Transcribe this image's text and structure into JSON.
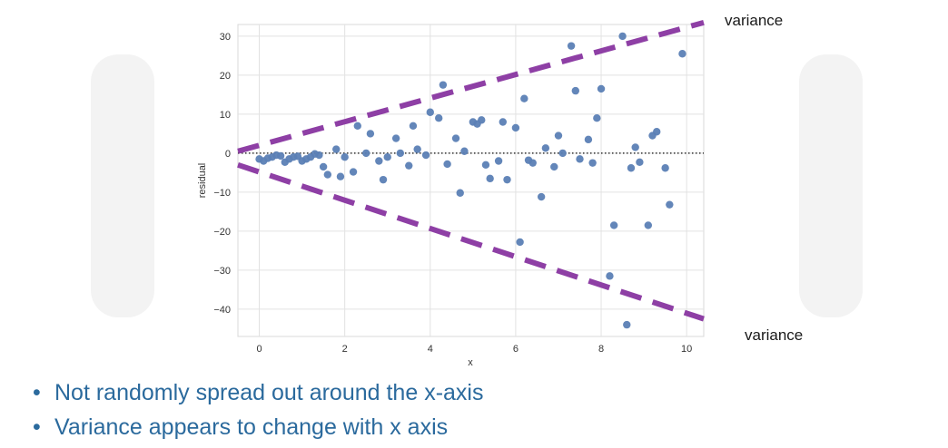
{
  "chart_data": {
    "type": "scatter",
    "xlabel": "x",
    "ylabel": "residual",
    "xlim": [
      -0.5,
      10.4
    ],
    "ylim": [
      -47,
      33
    ],
    "x_ticks": [
      0,
      2,
      4,
      6,
      8,
      10
    ],
    "y_ticks": [
      30,
      20,
      10,
      0,
      -10,
      -20,
      -30,
      -40
    ],
    "y_tick_labels": [
      "30",
      "20",
      "10",
      "0",
      "−10",
      "−20",
      "−30",
      "−40"
    ],
    "grid": true,
    "zero_line": {
      "y": 0,
      "style": "dotted",
      "color": "#333333"
    },
    "point_color": "#5b7fb5",
    "series": [
      {
        "points": [
          [
            0.0,
            -1.5
          ],
          [
            0.1,
            -2.0
          ],
          [
            0.2,
            -1.3
          ],
          [
            0.3,
            -1.0
          ],
          [
            0.4,
            -0.5
          ],
          [
            0.5,
            -0.7
          ],
          [
            0.6,
            -2.3
          ],
          [
            0.7,
            -1.5
          ],
          [
            0.8,
            -1.0
          ],
          [
            0.9,
            -0.8
          ],
          [
            1.0,
            -2.0
          ],
          [
            1.1,
            -1.5
          ],
          [
            1.2,
            -1.0
          ],
          [
            1.3,
            -0.2
          ],
          [
            1.4,
            -0.5
          ],
          [
            1.5,
            -3.5
          ],
          [
            1.6,
            -5.5
          ],
          [
            1.8,
            1.0
          ],
          [
            1.9,
            -6.0
          ],
          [
            2.0,
            -1.0
          ],
          [
            2.2,
            -4.8
          ],
          [
            2.3,
            7.0
          ],
          [
            2.5,
            0.0
          ],
          [
            2.6,
            5.0
          ],
          [
            2.8,
            -2.0
          ],
          [
            2.9,
            -6.8
          ],
          [
            3.0,
            -1.0
          ],
          [
            3.2,
            3.8
          ],
          [
            3.3,
            0.0
          ],
          [
            3.5,
            -3.2
          ],
          [
            3.6,
            7.0
          ],
          [
            3.7,
            1.0
          ],
          [
            3.9,
            -0.5
          ],
          [
            4.0,
            10.5
          ],
          [
            4.2,
            9.0
          ],
          [
            4.3,
            17.5
          ],
          [
            4.4,
            -2.8
          ],
          [
            4.6,
            3.8
          ],
          [
            4.7,
            -10.2
          ],
          [
            4.8,
            0.5
          ],
          [
            5.0,
            8.0
          ],
          [
            5.1,
            7.5
          ],
          [
            5.2,
            8.5
          ],
          [
            5.3,
            -3.0
          ],
          [
            5.4,
            -6.5
          ],
          [
            5.6,
            -2.0
          ],
          [
            5.7,
            8.0
          ],
          [
            5.8,
            -6.8
          ],
          [
            6.0,
            6.5
          ],
          [
            6.1,
            -22.8
          ],
          [
            6.2,
            14.0
          ],
          [
            6.3,
            -1.8
          ],
          [
            6.4,
            -2.5
          ],
          [
            6.6,
            -11.2
          ],
          [
            6.7,
            1.3
          ],
          [
            6.9,
            -3.5
          ],
          [
            7.0,
            4.5
          ],
          [
            7.1,
            0.0
          ],
          [
            7.3,
            27.5
          ],
          [
            7.4,
            16.0
          ],
          [
            7.5,
            -1.5
          ],
          [
            7.7,
            3.5
          ],
          [
            7.8,
            -2.5
          ],
          [
            7.9,
            9.0
          ],
          [
            8.0,
            16.5
          ],
          [
            8.2,
            -31.5
          ],
          [
            8.3,
            -18.5
          ],
          [
            8.5,
            30.0
          ],
          [
            8.6,
            -44.0
          ],
          [
            8.7,
            -3.8
          ],
          [
            8.8,
            1.5
          ],
          [
            8.9,
            -2.3
          ],
          [
            9.1,
            -18.5
          ],
          [
            9.2,
            4.5
          ],
          [
            9.3,
            5.5
          ],
          [
            9.5,
            -3.8
          ],
          [
            9.6,
            -13.2
          ],
          [
            9.9,
            25.5
          ]
        ]
      }
    ],
    "trend_lines": [
      {
        "name": "upper",
        "from": [
          -0.5,
          0.5
        ],
        "to": [
          10.4,
          33.5
        ],
        "color": "#8e3fa5",
        "style": "dashed"
      },
      {
        "name": "lower",
        "from": [
          -0.5,
          -3.0
        ],
        "to": [
          10.4,
          -42.5
        ],
        "color": "#8e3fa5",
        "style": "dashed"
      }
    ]
  },
  "annotations": {
    "upper": "variance",
    "lower": "variance"
  },
  "bullets": [
    "Not randomly spread out around the x-axis",
    "Variance appears to change with x axis"
  ],
  "colors": {
    "bullet_text": "#2b6a9d",
    "trend_line": "#8e3fa5",
    "points": "#5b7fb5"
  }
}
